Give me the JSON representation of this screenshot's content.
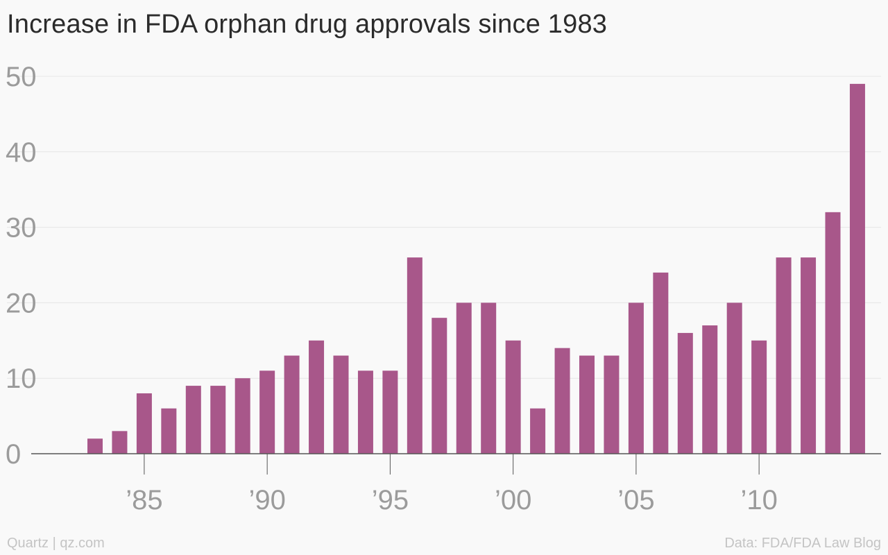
{
  "chart_data": {
    "type": "bar",
    "title": "Increase in FDA orphan drug approvals since 1983",
    "xlabel": "",
    "ylabel": "",
    "categories": [
      1983,
      1984,
      1985,
      1986,
      1987,
      1988,
      1989,
      1990,
      1991,
      1992,
      1993,
      1994,
      1995,
      1996,
      1997,
      1998,
      1999,
      2000,
      2001,
      2002,
      2003,
      2004,
      2005,
      2006,
      2007,
      2008,
      2009,
      2010,
      2011,
      2012,
      2013,
      2014
    ],
    "values": [
      2,
      3,
      8,
      6,
      9,
      9,
      10,
      11,
      13,
      15,
      13,
      11,
      11,
      26,
      18,
      20,
      20,
      15,
      6,
      14,
      13,
      13,
      20,
      24,
      16,
      17,
      20,
      15,
      26,
      26,
      32,
      49
    ],
    "ylim": [
      0,
      50
    ],
    "y_ticks": [
      0,
      10,
      20,
      30,
      40,
      50
    ],
    "y_tick_labels": [
      "0",
      "10",
      "20",
      "30",
      "40",
      "50"
    ],
    "x_ticks": [
      1985,
      1990,
      1995,
      2000,
      2005,
      2010
    ],
    "x_tick_labels": [
      "’85",
      "’90",
      "’95",
      "’00",
      "’05",
      "’10"
    ],
    "grid": true,
    "legend": "none",
    "bar_color": "#a8578a",
    "grid_color": "#e6e6e6",
    "axis_color": "#555555",
    "tick_label_color": "#9b9b9b"
  },
  "footer": {
    "source_left": "Quartz | qz.com",
    "source_right": "Data: FDA/FDA Law Blog"
  }
}
